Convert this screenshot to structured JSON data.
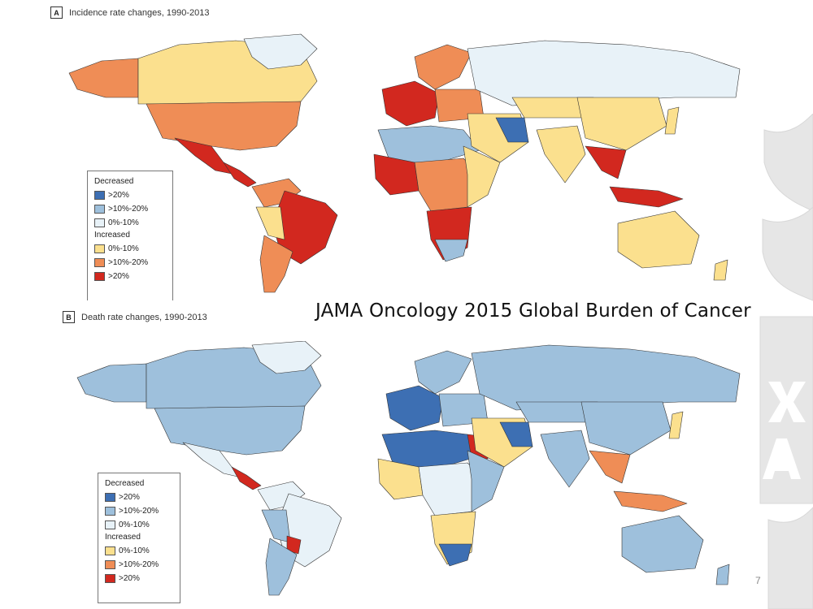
{
  "panel_a": {
    "letter": "A",
    "title": "Incidence rate changes, 1990-2013"
  },
  "panel_b": {
    "letter": "B",
    "title": "Death rate changes, 1990-2013"
  },
  "caption": "JAMA Oncology 2015 Global Burden of Cancer",
  "legend": {
    "decreased_label": "Decreased",
    "increased_label": "Increased",
    "decreased": [
      {
        "label": ">20%",
        "color": "#3d6fb3"
      },
      {
        "label": ">10%-20%",
        "color": "#9ec0dc"
      },
      {
        "label": "0%-10%",
        "color": "#e8f2f8"
      }
    ],
    "increased": [
      {
        "label": "0%-10%",
        "color": "#fbe08e"
      },
      {
        "label": ">10%-20%",
        "color": "#ef8d56"
      },
      {
        "label": ">20%",
        "color": "#d2281f"
      }
    ]
  },
  "page_number": "7",
  "colors": {
    "ocean": "#ffffff",
    "border": "#333333"
  }
}
